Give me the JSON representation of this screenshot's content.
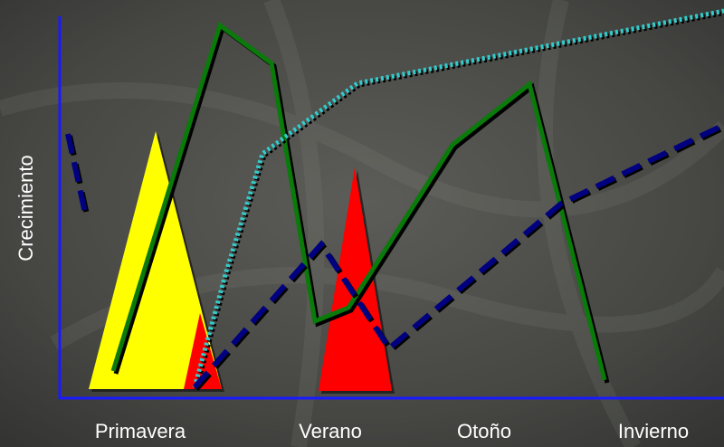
{
  "axis": {
    "y_label": "Crecimiento",
    "x_labels": [
      "Primavera",
      "Verano",
      "Otoño",
      "Invierno"
    ]
  }
}
